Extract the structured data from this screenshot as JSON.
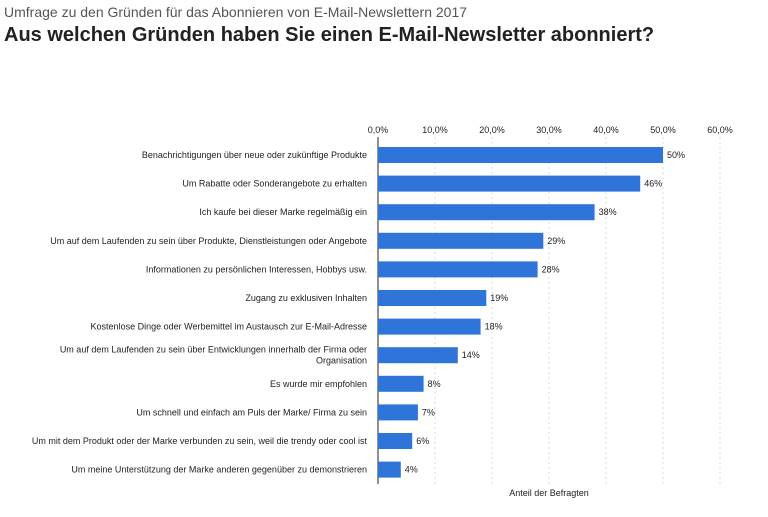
{
  "header": {
    "subtitle": "Umfrage zu den Gründen für das Abonnieren von E-Mail-Newslettern 2017",
    "title": "Aus welchen Gründen haben Sie einen E-Mail-Newsletter abonniert?"
  },
  "colors": {
    "bar": "#2f74d8",
    "grid": "#d9d9d9",
    "axis": "#222222"
  },
  "chart_data": {
    "type": "bar",
    "orientation": "horizontal",
    "title": "Aus welchen Gründen haben Sie einen E-Mail-Newsletter abonniert?",
    "xlabel": "Anteil der Befragten",
    "ylabel": "",
    "xlim": [
      0,
      60
    ],
    "ticks": [
      "0,0%",
      "10,0%",
      "20,0%",
      "30,0%",
      "40,0%",
      "50,0%",
      "60,0%"
    ],
    "tick_values": [
      0,
      10,
      20,
      30,
      40,
      50,
      60
    ],
    "grid": true,
    "categories": [
      [
        "Benachrichtigungen über neue oder zukünftige Produkte"
      ],
      [
        "Um Rabatte oder Sonderangebote zu erhalten"
      ],
      [
        "Ich kaufe bei dieser Marke regelmäßig ein"
      ],
      [
        "Um auf dem Laufenden zu sein über Produkte, Dienstleistungen oder Angebote"
      ],
      [
        "Informationen zu persönlichen Interessen, Hobbys usw."
      ],
      [
        "Zugang zu exklusiven Inhalten"
      ],
      [
        "Kostenlose Dinge oder Werbemittel im Austausch zur E-Mail-Adresse"
      ],
      [
        "Um auf dem Laufenden zu sein über Entwicklungen innerhalb der Firma oder",
        "Organisation"
      ],
      [
        "Es wurde mir empfohlen"
      ],
      [
        "Um schnell und einfach am Puls der Marke/ Firma zu sein"
      ],
      [
        "Um mit dem Produkt oder der Marke verbunden zu sein, weil die trendy oder cool ist"
      ],
      [
        "Um meine Unterstützung der Marke anderen gegenüber zu demonstrieren"
      ]
    ],
    "values": [
      50,
      46,
      38,
      29,
      28,
      19,
      18,
      14,
      8,
      7,
      6,
      4
    ],
    "value_labels": [
      "50%",
      "46%",
      "38%",
      "29%",
      "28%",
      "19%",
      "18%",
      "14%",
      "8%",
      "7%",
      "6%",
      "4%"
    ]
  }
}
